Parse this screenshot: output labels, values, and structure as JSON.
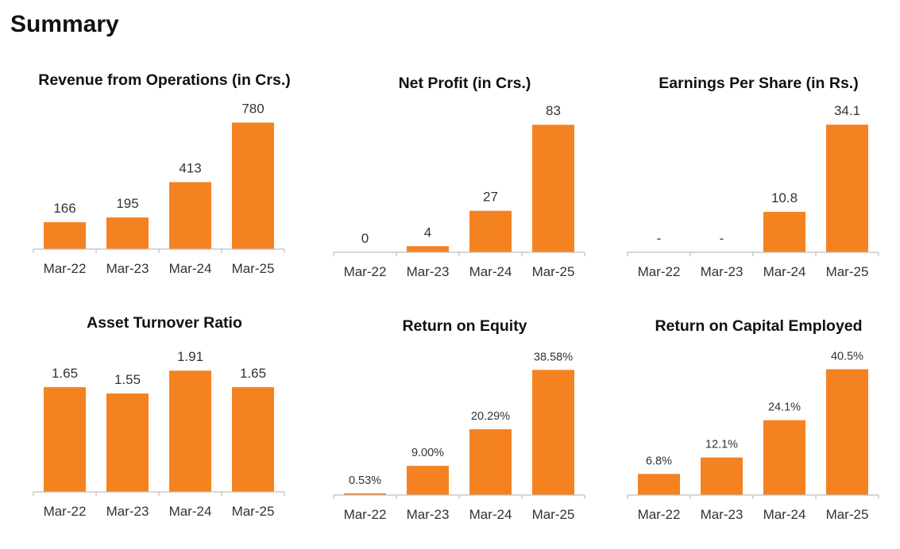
{
  "page": {
    "title": "Summary"
  },
  "colors": {
    "bar": "#f58220"
  },
  "chart_data": [
    {
      "id": "revenue",
      "type": "bar",
      "title": "Revenue from Operations (in Crs.)",
      "categories": [
        "Mar-22",
        "Mar-23",
        "Mar-24",
        "Mar-25"
      ],
      "values": [
        166,
        195,
        413,
        780
      ],
      "labels": [
        "166",
        "195",
        "413",
        "780"
      ],
      "ylim": [
        0,
        900
      ]
    },
    {
      "id": "net-profit",
      "type": "bar",
      "title": "Net Profit (in Crs.)",
      "categories": [
        "Mar-22",
        "Mar-23",
        "Mar-24",
        "Mar-25"
      ],
      "values": [
        0,
        4,
        27,
        83
      ],
      "labels": [
        "0",
        "4",
        "27",
        "83"
      ],
      "ylim": [
        0,
        95
      ]
    },
    {
      "id": "eps",
      "type": "bar",
      "title": "Earnings Per Share (in Rs.)",
      "categories": [
        "Mar-22",
        "Mar-23",
        "Mar-24",
        "Mar-25"
      ],
      "values": [
        0,
        0,
        10.8,
        34.1
      ],
      "labels": [
        "-",
        "-",
        "10.8",
        "34.1"
      ],
      "ylim": [
        0,
        39
      ]
    },
    {
      "id": "asset-turnover",
      "type": "bar",
      "title": "Asset Turnover Ratio",
      "categories": [
        "Mar-22",
        "Mar-23",
        "Mar-24",
        "Mar-25"
      ],
      "values": [
        1.65,
        1.55,
        1.91,
        1.65
      ],
      "labels": [
        "1.65",
        "1.55",
        "1.91",
        "1.65"
      ],
      "ylim": [
        0,
        2.3
      ]
    },
    {
      "id": "roe",
      "type": "bar",
      "title": "Return on Equity",
      "categories": [
        "Mar-22",
        "Mar-23",
        "Mar-24",
        "Mar-25"
      ],
      "values": [
        0.53,
        9.0,
        20.29,
        38.58
      ],
      "labels": [
        "0.53%",
        "9.00%",
        "20.29%",
        "38.58%"
      ],
      "ylim": [
        0,
        45
      ]
    },
    {
      "id": "roce",
      "type": "bar",
      "title": "Return on Capital Employed",
      "categories": [
        "Mar-22",
        "Mar-23",
        "Mar-24",
        "Mar-25"
      ],
      "values": [
        6.8,
        12.1,
        24.1,
        40.5
      ],
      "labels": [
        "6.8%",
        "12.1%",
        "24.1%",
        "40.5%"
      ],
      "ylim": [
        0,
        47
      ]
    }
  ]
}
